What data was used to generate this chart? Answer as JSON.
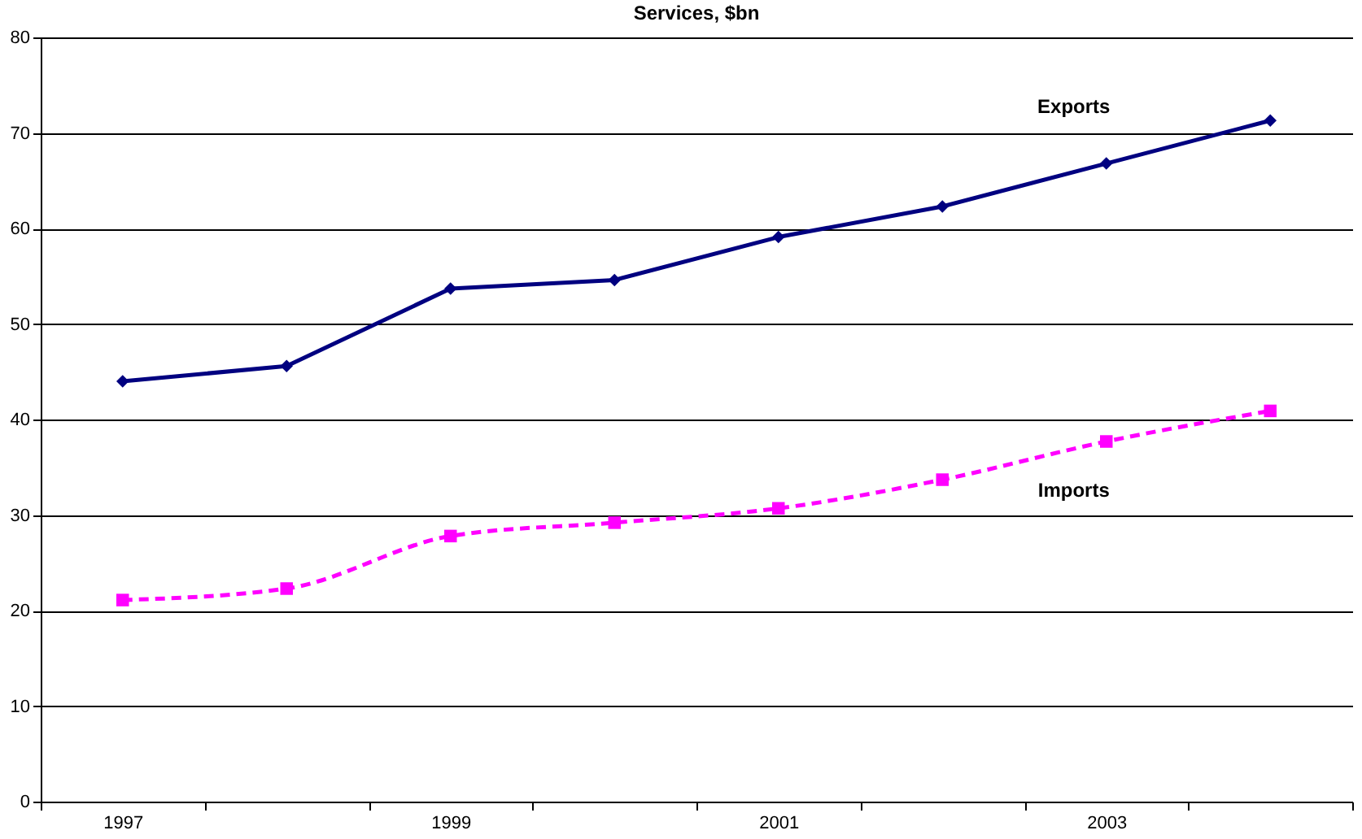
{
  "chart_data": {
    "type": "line",
    "title": "Services, $bn",
    "categories": [
      "1997",
      null,
      "1999",
      null,
      "2001",
      null,
      "2003",
      null
    ],
    "series": [
      {
        "name": "Exports",
        "color": "#000080",
        "marker": "diamond",
        "line_style": "solid",
        "values": [
          44.0,
          45.6,
          53.7,
          54.6,
          59.1,
          62.3,
          66.8,
          71.3
        ]
      },
      {
        "name": "Imports",
        "color": "#ff00ff",
        "marker": "square",
        "line_style": "dashed",
        "values": [
          21.1,
          22.3,
          27.8,
          29.2,
          30.7,
          33.7,
          37.7,
          40.9
        ]
      }
    ],
    "ylim": [
      0,
      80
    ],
    "yticks": [
      0,
      10,
      20,
      30,
      40,
      50,
      60,
      70,
      80
    ],
    "grid": "y"
  }
}
